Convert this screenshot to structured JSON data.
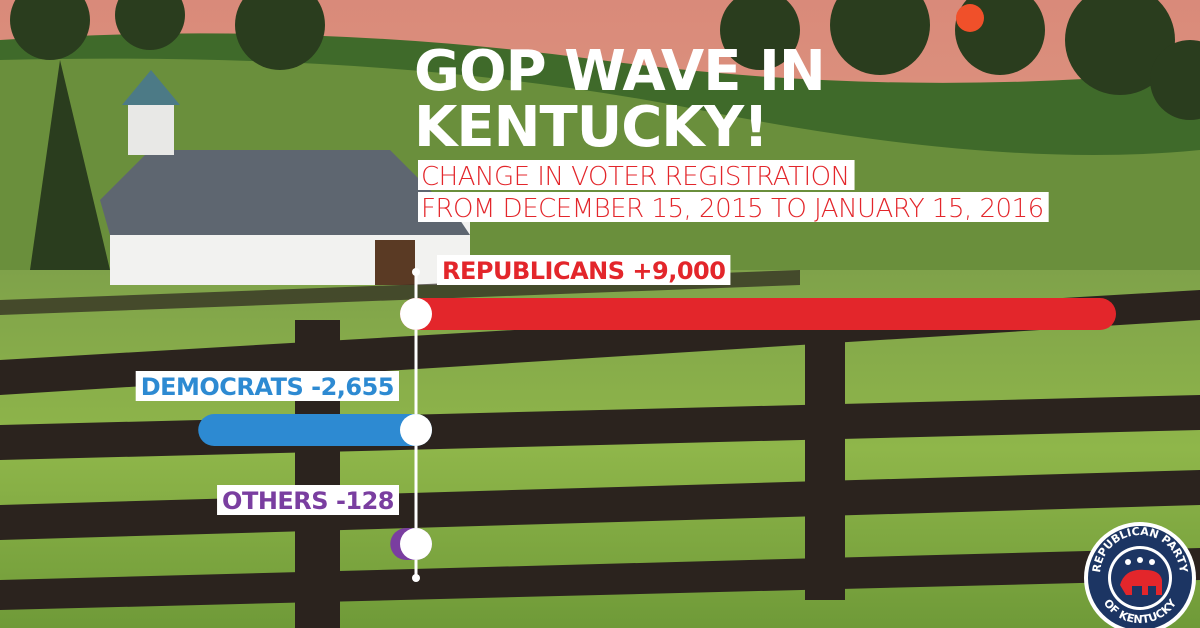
{
  "chart_data": {
    "type": "bar",
    "title": [
      "GOP WAVE IN",
      "KENTUCKY!"
    ],
    "subtitle": [
      "CHANGE IN VOTER REGISTRATION",
      "FROM DECEMBER 15, 2015 TO JANUARY 15, 2016"
    ],
    "categories": [
      "REPUBLICANS",
      "DEMOCRATS",
      "OTHERS"
    ],
    "values": [
      9000,
      -2655,
      -128
    ],
    "value_labels": [
      "+9,000",
      "-2,655",
      "-128"
    ],
    "colors": [
      "#e3262b",
      "#2d8ad2",
      "#7a3ea0"
    ]
  },
  "logo": {
    "top": "REPUBLICAN PARTY",
    "bottom": "OF KENTUCKY"
  }
}
